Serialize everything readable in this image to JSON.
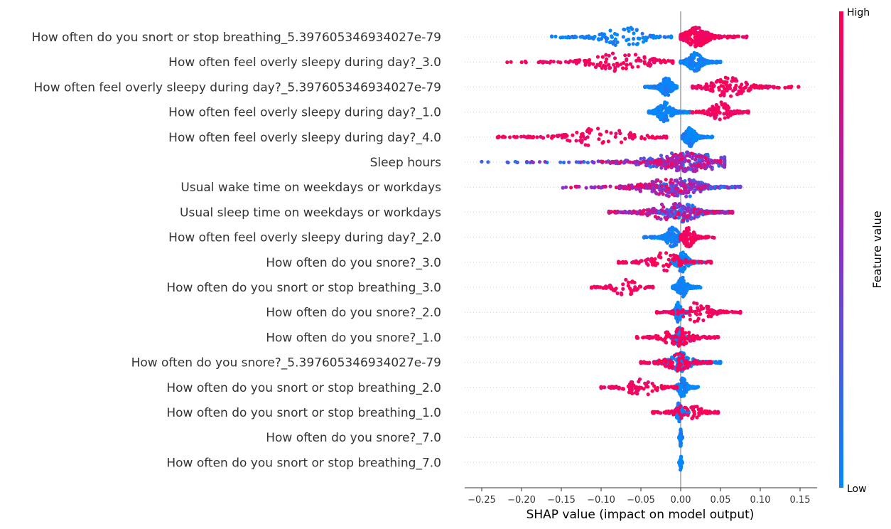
{
  "chart_data": {
    "type": "scatter",
    "subtype": "shap-beeswarm",
    "title": "",
    "xlabel": "SHAP value (impact on model output)",
    "xlim": [
      -0.27,
      0.17
    ],
    "xticks": [
      -0.25,
      -0.2,
      -0.15,
      -0.1,
      -0.05,
      0.0,
      0.05,
      0.1,
      0.15
    ],
    "xtick_labels": [
      "−0.25",
      "−0.20",
      "−0.15",
      "−0.10",
      "−0.05",
      "0.00",
      "0.05",
      "0.10",
      "0.15"
    ],
    "grid": false,
    "colorbar": {
      "title": "Feature value",
      "high_label": "High",
      "low_label": "Low",
      "high_color": "#ff0052",
      "mid_color": "#8b2fc9",
      "low_color": "#008bfb",
      "placement": "right"
    },
    "features": [
      {
        "name": "How often do you snort or stop breathing_5.397605346934027e-79",
        "low": {
          "min": -0.162,
          "max": -0.012,
          "center": -0.07,
          "n": 120
        },
        "high": {
          "min": 0.0,
          "max": 0.083,
          "center": 0.02,
          "n": 260
        }
      },
      {
        "name": "How often feel overly sleepy during day?_3.0",
        "low": {
          "min": 0.0,
          "max": 0.05,
          "center": 0.018,
          "n": 230
        },
        "high": {
          "min": -0.218,
          "max": -0.01,
          "center": -0.075,
          "n": 130
        }
      },
      {
        "name": "How often feel overly sleepy during day?_5.397605346934027e-79",
        "low": {
          "min": -0.045,
          "max": -0.005,
          "center": -0.018,
          "n": 230
        },
        "high": {
          "min": 0.015,
          "max": 0.148,
          "center": 0.06,
          "n": 150
        }
      },
      {
        "name": "How often feel overly sleepy during day?_1.0",
        "low": {
          "min": -0.04,
          "max": 0.012,
          "center": -0.02,
          "n": 240
        },
        "high": {
          "min": 0.015,
          "max": 0.085,
          "center": 0.05,
          "n": 110
        }
      },
      {
        "name": "How often feel overly sleepy during day?_4.0",
        "low": {
          "min": 0.002,
          "max": 0.04,
          "center": 0.012,
          "n": 200
        },
        "high": {
          "min": -0.23,
          "max": -0.018,
          "center": -0.1,
          "n": 120
        }
      },
      {
        "name": "Sleep hours",
        "low": {
          "min": -0.25,
          "max": 0.055,
          "center": 0.008,
          "n": 200
        },
        "high": {
          "min": -0.1,
          "max": 0.05,
          "center": 0.008,
          "n": 180
        }
      },
      {
        "name": "Usual wake time on weekdays or workdays",
        "low": {
          "min": -0.05,
          "max": 0.075,
          "center": 0.005,
          "n": 200
        },
        "high": {
          "min": -0.148,
          "max": 0.03,
          "center": -0.02,
          "n": 180
        }
      },
      {
        "name": "Usual sleep time on weekdays or workdays",
        "low": {
          "min": -0.04,
          "max": 0.06,
          "center": 0.005,
          "n": 200
        },
        "high": {
          "min": -0.09,
          "max": 0.065,
          "center": -0.01,
          "n": 170
        }
      },
      {
        "name": "How often feel overly sleepy during day?_2.0",
        "low": {
          "min": -0.046,
          "max": 0.002,
          "center": -0.01,
          "n": 160
        },
        "high": {
          "min": 0.0,
          "max": 0.042,
          "center": 0.01,
          "n": 110
        }
      },
      {
        "name": "How often do you snore?_3.0",
        "low": {
          "min": -0.012,
          "max": 0.03,
          "center": 0.002,
          "n": 160
        },
        "high": {
          "min": -0.078,
          "max": 0.038,
          "center": -0.02,
          "n": 110
        }
      },
      {
        "name": "How often do you snort or stop breathing_3.0",
        "low": {
          "min": -0.01,
          "max": 0.025,
          "center": 0.002,
          "n": 160
        },
        "high": {
          "min": -0.112,
          "max": -0.035,
          "center": -0.07,
          "n": 70
        }
      },
      {
        "name": "How often do you snore?_2.0",
        "low": {
          "min": -0.012,
          "max": 0.01,
          "center": -0.003,
          "n": 160
        },
        "high": {
          "min": -0.03,
          "max": 0.075,
          "center": 0.02,
          "n": 110
        }
      },
      {
        "name": "How often do you snore?_1.0",
        "low": {
          "min": -0.012,
          "max": 0.012,
          "center": -0.002,
          "n": 160
        },
        "high": {
          "min": -0.055,
          "max": 0.047,
          "center": -0.005,
          "n": 130
        }
      },
      {
        "name": "How often do you snore?_5.397605346934027e-79",
        "low": {
          "min": -0.03,
          "max": 0.05,
          "center": 0.0,
          "n": 160
        },
        "high": {
          "min": -0.05,
          "max": 0.038,
          "center": -0.005,
          "n": 120
        }
      },
      {
        "name": "How often do you snort or stop breathing_2.0",
        "low": {
          "min": -0.008,
          "max": 0.022,
          "center": 0.002,
          "n": 140
        },
        "high": {
          "min": -0.1,
          "max": -0.005,
          "center": -0.05,
          "n": 100
        }
      },
      {
        "name": "How often do you snort or stop breathing_1.0",
        "low": {
          "min": -0.01,
          "max": 0.01,
          "center": -0.002,
          "n": 130
        },
        "high": {
          "min": -0.035,
          "max": 0.047,
          "center": 0.01,
          "n": 90
        }
      },
      {
        "name": "How often do you snore?_7.0",
        "low": {
          "min": -0.002,
          "max": 0.002,
          "center": 0.0,
          "n": 70
        },
        "high": {
          "min": 0.0,
          "max": 0.0,
          "center": 0.0,
          "n": 0
        }
      },
      {
        "name": "How often do you snort or stop breathing_7.0",
        "low": {
          "min": -0.002,
          "max": 0.002,
          "center": 0.0,
          "n": 70
        },
        "high": {
          "min": 0.0,
          "max": 0.0,
          "center": 0.0,
          "n": 0
        }
      }
    ]
  }
}
